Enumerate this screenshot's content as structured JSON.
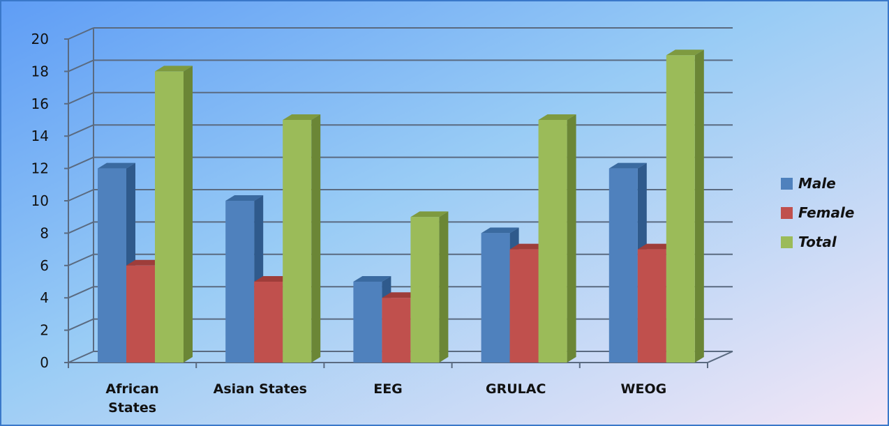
{
  "chart_data": {
    "type": "bar",
    "categories": [
      "African States",
      "Asian States",
      "EEG",
      "GRULAC",
      "WEOG"
    ],
    "category_lines": [
      [
        "African",
        "States"
      ],
      [
        "Asian States"
      ],
      [
        "EEG"
      ],
      [
        "GRULAC"
      ],
      [
        "WEOG"
      ]
    ],
    "series": [
      {
        "name": "Male",
        "values": [
          12,
          10,
          5,
          8,
          12
        ],
        "color": "#4f81bd",
        "side_color": "#2f5a8c",
        "top_color": "#3a6aa0"
      },
      {
        "name": "Female",
        "values": [
          6,
          5,
          4,
          7,
          7
        ],
        "color": "#c0504d",
        "side_color": "#8c302e",
        "top_color": "#9e3d3a"
      },
      {
        "name": "Total",
        "values": [
          18,
          15,
          9,
          15,
          19
        ],
        "color": "#9bbb59",
        "side_color": "#6b8636",
        "top_color": "#7e9a40"
      }
    ],
    "ylim": [
      0,
      20
    ],
    "yticks": [
      "0",
      "2",
      "4",
      "6",
      "8",
      "10",
      "12",
      "14",
      "16",
      "18",
      "20"
    ],
    "title": "",
    "xlabel": "",
    "ylabel": "",
    "grid": true,
    "legend": "right",
    "background": {
      "top_left": "#5f9df5",
      "mid": "#99ccf5",
      "bottom_right": "#f3e6f6"
    },
    "gridline_color": "#5a6a80"
  }
}
